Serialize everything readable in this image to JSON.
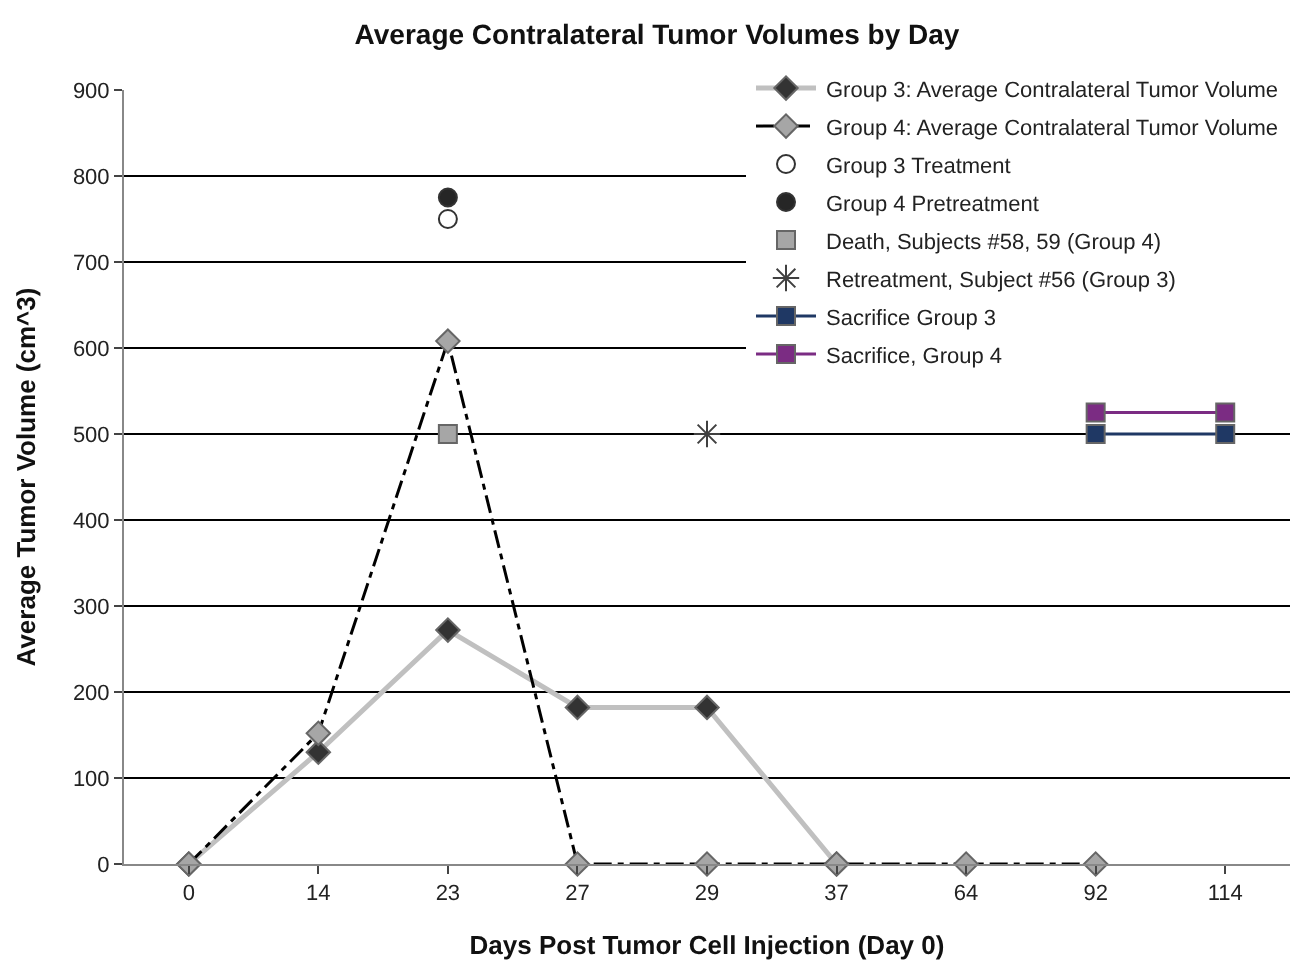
{
  "chart_data": {
    "type": "line",
    "title": "Average Contralateral Tumor Volumes by Day",
    "xlabel": "Days Post Tumor Cell Injection (Day 0)",
    "ylabel": "Average Tumor Volume (cm^3)",
    "categories": [
      "0",
      "14",
      "23",
      "27",
      "29",
      "37",
      "64",
      "92",
      "114"
    ],
    "series": [
      {
        "name": "Group 3: Average Contralateral Tumor Volume",
        "color": "#c0c0c0",
        "marker": "diamond",
        "line_style": "solid",
        "values": [
          0,
          130,
          272,
          182,
          182,
          0,
          null,
          null,
          null
        ]
      },
      {
        "name": "Group 4: Average Contralateral Tumor Volume",
        "color": "#000000",
        "marker": "diamond",
        "line_style": "dashed",
        "values": [
          0,
          152,
          608,
          0,
          0,
          0,
          0,
          0,
          null
        ]
      },
      {
        "name": "Group 3 Treatment",
        "type": "scatter",
        "color": "#ffffff",
        "marker": "circle",
        "values": [
          null,
          null,
          750,
          null,
          null,
          null,
          null,
          null,
          null
        ]
      },
      {
        "name": "Group 4 Pretreatment",
        "type": "scatter",
        "color": "#262626",
        "marker": "circle",
        "values": [
          null,
          null,
          775,
          null,
          null,
          null,
          null,
          null,
          null
        ]
      },
      {
        "name": "Death, Subjects #58, 59 (Group 4)",
        "type": "scatter",
        "color": "#a6a6a6",
        "marker": "square",
        "values": [
          null,
          null,
          500,
          null,
          null,
          null,
          null,
          null,
          null
        ]
      },
      {
        "name": "Retreatment, Subject #56 (Group 3)",
        "type": "scatter",
        "color": "#404040",
        "marker": "cross",
        "values": [
          null,
          null,
          null,
          null,
          500,
          null,
          null,
          null,
          null
        ]
      },
      {
        "name": "Sacrifice Group 3",
        "color": "#1f3864",
        "marker": "square",
        "line_style": "solid",
        "values": [
          null,
          null,
          null,
          null,
          null,
          null,
          null,
          500,
          500
        ]
      },
      {
        "name": "Sacrifice, Group 4",
        "color": "#7b2c83",
        "marker": "square",
        "line_style": "solid",
        "values": [
          null,
          null,
          null,
          null,
          null,
          null,
          null,
          525,
          525
        ]
      }
    ],
    "ylim": [
      0,
      900
    ],
    "yticks": [
      0,
      100,
      200,
      300,
      400,
      500,
      600,
      700,
      800,
      900
    ],
    "grid": "y",
    "legend": "top right"
  }
}
